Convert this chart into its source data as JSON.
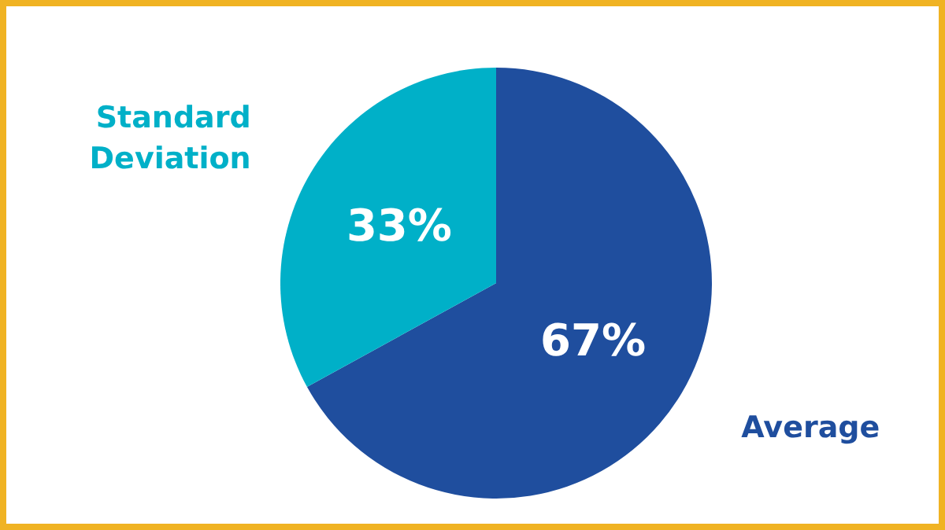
{
  "chart_data": {
    "type": "pie",
    "categories": [
      "Average",
      "Standard Deviation"
    ],
    "values": [
      67,
      33
    ],
    "colors": [
      "#1f4e9e",
      "#00b0c8"
    ],
    "value_labels": [
      "67%",
      "33%"
    ],
    "legend": false
  }
}
